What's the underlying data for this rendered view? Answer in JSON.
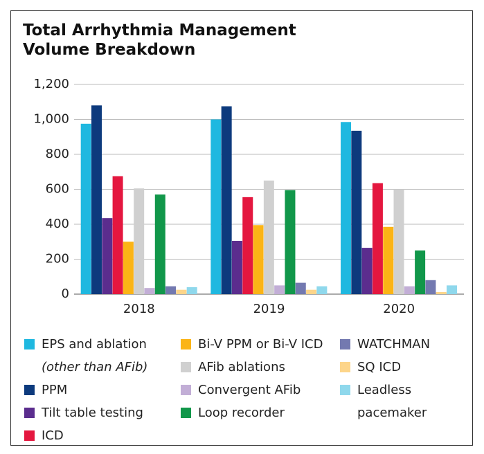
{
  "chart_data": {
    "type": "bar",
    "title": "Total Arrhythmia Management Volume Breakdown",
    "categories": [
      "2018",
      "2019",
      "2020"
    ],
    "ylim": [
      0,
      1200
    ],
    "yticks": [
      0,
      200,
      400,
      600,
      800,
      1000,
      {
        "value": 1000,
        "label": "1,000"
      },
      {
        "value": 1200,
        "label": "1,200"
      }
    ],
    "grid": true,
    "series": [
      {
        "name": "EPS and ablation",
        "note": "(other than AFib)",
        "color": "#1fb8e0",
        "values": [
          975,
          1000,
          985
        ]
      },
      {
        "name": "PPM",
        "color": "#0d3a7d",
        "values": [
          1080,
          1075,
          935
        ]
      },
      {
        "name": "Tilt table testing",
        "color": "#5b2d8e",
        "values": [
          435,
          305,
          265
        ]
      },
      {
        "name": "ICD",
        "color": "#e4173f",
        "values": [
          675,
          555,
          635
        ]
      },
      {
        "name": "Bi-V PPM or Bi-V ICD",
        "color": "#fbb416",
        "values": [
          300,
          395,
          385
        ]
      },
      {
        "name": "AFib ablations",
        "color": "#d0d0d0",
        "values": [
          605,
          650,
          600
        ]
      },
      {
        "name": "Convergent AFib",
        "color": "#c2aed6",
        "values": [
          35,
          50,
          45
        ]
      },
      {
        "name": "Loop recorder",
        "color": "#11974a",
        "values": [
          570,
          595,
          250
        ]
      },
      {
        "name": "WATCHMAN",
        "color": "#7379b0",
        "values": [
          45,
          65,
          80
        ]
      },
      {
        "name": "SQ ICD",
        "color": "#fdd58a",
        "values": [
          25,
          25,
          12
        ]
      },
      {
        "name": "Leadless pacemaker",
        "color": "#8fd8ec",
        "values": [
          40,
          45,
          50
        ]
      }
    ]
  }
}
